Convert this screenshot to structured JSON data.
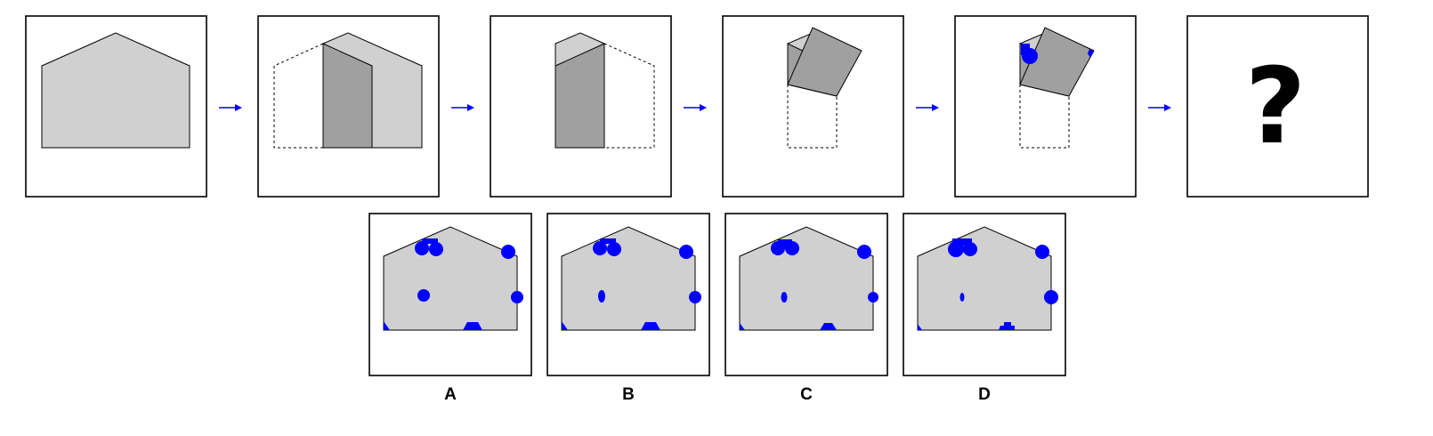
{
  "puzzle": {
    "question_mark": "?"
  },
  "options": [
    {
      "label": "A"
    },
    {
      "label": "B"
    },
    {
      "label": "C"
    },
    {
      "label": "D"
    }
  ],
  "colors": {
    "paper": "#d0d0d0",
    "folded": "#a0a0a0",
    "outline": "#000000",
    "hole": "#0000ff",
    "arrow": "#0000ff"
  }
}
